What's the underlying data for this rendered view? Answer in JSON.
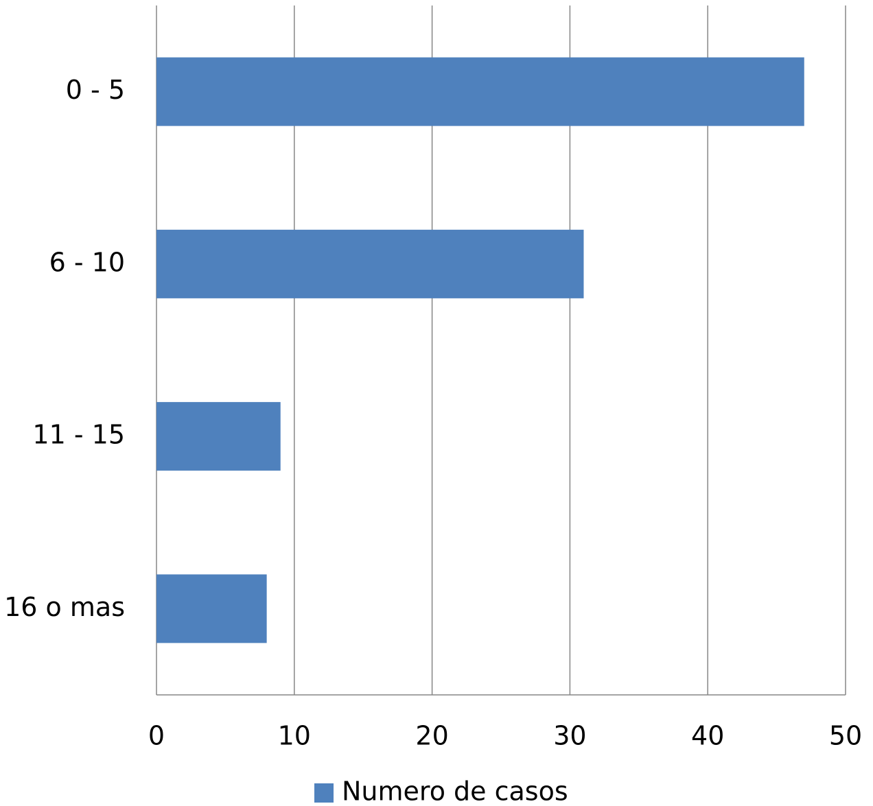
{
  "chart_data": {
    "type": "bar",
    "orientation": "horizontal",
    "categories": [
      "0 - 5",
      "6 - 10",
      "11 - 15",
      "16 o mas"
    ],
    "series": [
      {
        "name": "Numero de casos",
        "color": "#4f81bd",
        "values": [
          47,
          31,
          9,
          8
        ]
      }
    ],
    "xlim": [
      0,
      50
    ],
    "xticks": [
      0,
      10,
      20,
      30,
      40,
      50
    ],
    "grid": true,
    "legend": "bottom"
  }
}
